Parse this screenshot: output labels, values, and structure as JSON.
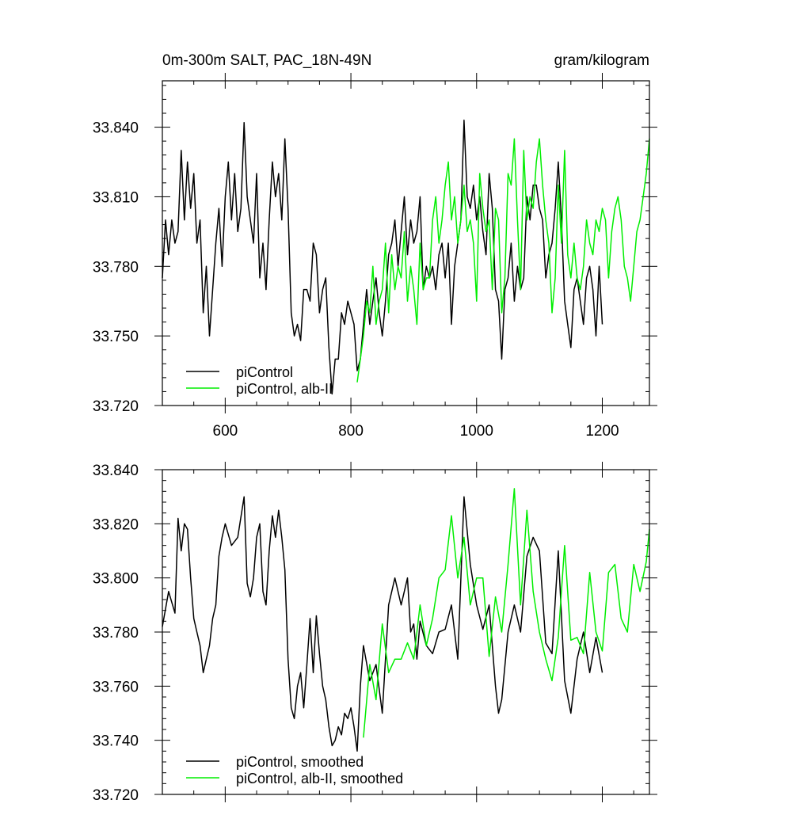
{
  "chart_data": [
    {
      "type": "line",
      "title": "0m-300m SALT, PAC_18N-49N",
      "units": "gram/kilogram",
      "xlabel": "",
      "ylabel": "",
      "xlim": [
        500,
        1275
      ],
      "ylim": [
        33.72,
        33.86
      ],
      "xticks": [
        600,
        800,
        1000,
        1200
      ],
      "xtick_labels": [
        "600",
        "800",
        "1000",
        "1200"
      ],
      "yticks": [
        33.72,
        33.75,
        33.78,
        33.81,
        33.84
      ],
      "ytick_labels": [
        "33.720",
        "33.750",
        "33.780",
        "33.810",
        "33.840"
      ],
      "legend": {
        "placement": "bottom-left"
      },
      "series": [
        {
          "name": "piControl",
          "color": "#000000",
          "x": [
            500,
            505,
            510,
            515,
            520,
            525,
            530,
            535,
            540,
            545,
            550,
            555,
            560,
            565,
            570,
            575,
            580,
            585,
            590,
            595,
            600,
            605,
            610,
            615,
            620,
            625,
            630,
            635,
            640,
            645,
            650,
            655,
            660,
            665,
            670,
            675,
            680,
            685,
            690,
            695,
            700,
            705,
            710,
            715,
            720,
            725,
            730,
            735,
            740,
            745,
            750,
            755,
            760,
            765,
            770,
            775,
            780,
            785,
            790,
            795,
            800,
            805,
            810,
            815,
            820,
            825,
            830,
            835,
            840,
            845,
            850,
            855,
            860,
            865,
            870,
            875,
            880,
            885,
            890,
            895,
            900,
            905,
            910,
            915,
            920,
            925,
            930,
            935,
            940,
            945,
            950,
            955,
            960,
            965,
            970,
            975,
            980,
            985,
            990,
            995,
            1000,
            1005,
            1010,
            1015,
            1020,
            1025,
            1030,
            1035,
            1040,
            1045,
            1050,
            1055,
            1060,
            1065,
            1070,
            1075,
            1080,
            1085,
            1090,
            1095,
            1100,
            1105,
            1110,
            1115,
            1120,
            1125,
            1130,
            1135,
            1140,
            1145,
            1150,
            1155,
            1160,
            1165,
            1170,
            1175,
            1180,
            1185,
            1190,
            1195,
            1200
          ],
          "values": [
            33.775,
            33.8,
            33.785,
            33.8,
            33.79,
            33.795,
            33.83,
            33.8,
            33.825,
            33.805,
            33.82,
            33.79,
            33.8,
            33.76,
            33.78,
            33.75,
            33.77,
            33.79,
            33.805,
            33.78,
            33.81,
            33.825,
            33.8,
            33.82,
            33.795,
            33.805,
            33.842,
            33.81,
            33.8,
            33.79,
            33.82,
            33.775,
            33.79,
            33.77,
            33.8,
            33.825,
            33.81,
            33.82,
            33.8,
            33.835,
            33.805,
            33.76,
            33.75,
            33.755,
            33.748,
            33.77,
            33.77,
            33.765,
            33.79,
            33.785,
            33.76,
            33.77,
            33.775,
            33.745,
            33.725,
            33.74,
            33.74,
            33.76,
            33.755,
            33.765,
            33.76,
            33.755,
            33.735,
            33.74,
            33.755,
            33.77,
            33.755,
            33.765,
            33.775,
            33.76,
            33.75,
            33.765,
            33.785,
            33.79,
            33.8,
            33.78,
            33.795,
            33.81,
            33.785,
            33.8,
            33.79,
            33.795,
            33.81,
            33.77,
            33.78,
            33.775,
            33.78,
            33.77,
            33.785,
            33.79,
            33.775,
            33.79,
            33.755,
            33.78,
            33.79,
            33.8,
            33.843,
            33.81,
            33.805,
            33.815,
            33.8,
            33.81,
            33.795,
            33.785,
            33.82,
            33.805,
            33.77,
            33.765,
            33.74,
            33.77,
            33.775,
            33.79,
            33.765,
            33.78,
            33.77,
            33.775,
            33.81,
            33.8,
            33.815,
            33.815,
            33.805,
            33.8,
            33.775,
            33.785,
            33.79,
            33.805,
            33.825,
            33.8,
            33.765,
            33.755,
            33.745,
            33.77,
            33.775,
            33.765,
            33.755,
            33.775,
            33.78,
            33.77,
            33.75,
            33.78,
            33.755
          ]
        },
        {
          "name": "piControl, alb-II",
          "color": "#00ee00",
          "x": [
            810,
            815,
            820,
            825,
            830,
            835,
            840,
            845,
            850,
            855,
            860,
            865,
            870,
            875,
            880,
            885,
            890,
            895,
            900,
            905,
            910,
            915,
            920,
            925,
            930,
            935,
            940,
            945,
            950,
            955,
            960,
            965,
            970,
            975,
            980,
            985,
            990,
            995,
            1000,
            1005,
            1010,
            1015,
            1020,
            1025,
            1030,
            1035,
            1040,
            1045,
            1050,
            1055,
            1060,
            1065,
            1070,
            1075,
            1080,
            1085,
            1090,
            1095,
            1100,
            1105,
            1110,
            1115,
            1120,
            1125,
            1130,
            1135,
            1140,
            1145,
            1150,
            1155,
            1160,
            1165,
            1170,
            1175,
            1180,
            1185,
            1190,
            1195,
            1200,
            1205,
            1210,
            1215,
            1220,
            1225,
            1230,
            1235,
            1240,
            1245,
            1250,
            1255,
            1260,
            1265,
            1270,
            1275
          ],
          "values": [
            33.73,
            33.74,
            33.75,
            33.765,
            33.76,
            33.78,
            33.755,
            33.765,
            33.77,
            33.79,
            33.76,
            33.785,
            33.77,
            33.78,
            33.775,
            33.795,
            33.765,
            33.78,
            33.77,
            33.755,
            33.79,
            33.77,
            33.775,
            33.775,
            33.8,
            33.81,
            33.79,
            33.8,
            33.815,
            33.825,
            33.8,
            33.81,
            33.79,
            33.8,
            33.815,
            33.795,
            33.8,
            33.79,
            33.765,
            33.82,
            33.805,
            33.795,
            33.8,
            33.77,
            33.805,
            33.8,
            33.76,
            33.775,
            33.82,
            33.815,
            33.835,
            33.8,
            33.77,
            33.83,
            33.8,
            33.81,
            33.805,
            33.825,
            33.835,
            33.815,
            33.8,
            33.79,
            33.76,
            33.775,
            33.815,
            33.79,
            33.83,
            33.785,
            33.775,
            33.79,
            33.775,
            33.77,
            33.78,
            33.8,
            33.79,
            33.785,
            33.8,
            33.795,
            33.805,
            33.8,
            33.775,
            33.795,
            33.805,
            33.81,
            33.8,
            33.78,
            33.775,
            33.765,
            33.78,
            33.795,
            33.8,
            33.81,
            33.82,
            33.835
          ]
        }
      ]
    },
    {
      "type": "line",
      "title": "",
      "xlabel": "",
      "ylabel": "",
      "xlim": [
        500,
        1275
      ],
      "ylim": [
        33.72,
        33.84
      ],
      "xticks": [
        600,
        800,
        1000,
        1200
      ],
      "yticks": [
        33.72,
        33.74,
        33.76,
        33.78,
        33.8,
        33.82,
        33.84
      ],
      "ytick_labels": [
        "33.720",
        "33.740",
        "33.760",
        "33.780",
        "33.800",
        "33.820",
        "33.840"
      ],
      "legend": {
        "placement": "bottom-left"
      },
      "series": [
        {
          "name": "piControl, smoothed",
          "color": "#000000",
          "x": [
            500,
            510,
            520,
            525,
            530,
            535,
            540,
            545,
            550,
            555,
            560,
            565,
            570,
            575,
            580,
            585,
            590,
            595,
            600,
            610,
            620,
            630,
            635,
            640,
            645,
            650,
            655,
            660,
            665,
            670,
            675,
            680,
            685,
            690,
            695,
            700,
            705,
            710,
            715,
            720,
            725,
            730,
            735,
            740,
            745,
            750,
            755,
            760,
            765,
            770,
            775,
            780,
            785,
            790,
            795,
            800,
            805,
            810,
            815,
            820,
            830,
            840,
            850,
            860,
            870,
            880,
            890,
            895,
            900,
            905,
            910,
            920,
            930,
            940,
            950,
            960,
            970,
            980,
            990,
            1000,
            1010,
            1020,
            1030,
            1035,
            1040,
            1050,
            1060,
            1070,
            1080,
            1090,
            1100,
            1110,
            1120,
            1130,
            1140,
            1150,
            1160,
            1170,
            1180,
            1190,
            1200
          ],
          "values": [
            33.782,
            33.795,
            33.787,
            33.822,
            33.81,
            33.82,
            33.818,
            33.8,
            33.785,
            33.78,
            33.775,
            33.765,
            33.77,
            33.775,
            33.785,
            33.79,
            33.808,
            33.815,
            33.82,
            33.812,
            33.815,
            33.83,
            33.798,
            33.793,
            33.8,
            33.815,
            33.82,
            33.795,
            33.79,
            33.81,
            33.823,
            33.815,
            33.825,
            33.815,
            33.803,
            33.77,
            33.752,
            33.748,
            33.76,
            33.765,
            33.752,
            33.768,
            33.785,
            33.765,
            33.786,
            33.772,
            33.76,
            33.755,
            33.745,
            33.738,
            33.74,
            33.745,
            33.742,
            33.75,
            33.748,
            33.752,
            33.745,
            33.736,
            33.76,
            33.775,
            33.762,
            33.768,
            33.75,
            33.79,
            33.8,
            33.79,
            33.8,
            33.78,
            33.783,
            33.77,
            33.784,
            33.775,
            33.772,
            33.78,
            33.781,
            33.79,
            33.77,
            33.83,
            33.805,
            33.79,
            33.781,
            33.79,
            33.76,
            33.75,
            33.755,
            33.78,
            33.79,
            33.78,
            33.808,
            33.815,
            33.81,
            33.776,
            33.772,
            33.81,
            33.762,
            33.75,
            33.77,
            33.78,
            33.765,
            33.778,
            33.765
          ]
        },
        {
          "name": "piControl, alb-II, smoothed",
          "color": "#00ee00",
          "x": [
            820,
            830,
            840,
            850,
            860,
            870,
            880,
            890,
            900,
            910,
            920,
            930,
            940,
            950,
            960,
            970,
            980,
            990,
            1000,
            1010,
            1020,
            1030,
            1040,
            1050,
            1060,
            1070,
            1080,
            1090,
            1100,
            1110,
            1120,
            1130,
            1140,
            1150,
            1160,
            1170,
            1180,
            1190,
            1200,
            1210,
            1220,
            1230,
            1240,
            1250,
            1260,
            1270,
            1275
          ],
          "values": [
            33.741,
            33.768,
            33.755,
            33.783,
            33.765,
            33.77,
            33.77,
            33.776,
            33.77,
            33.79,
            33.775,
            33.785,
            33.8,
            33.803,
            33.823,
            33.8,
            33.815,
            33.79,
            33.8,
            33.8,
            33.771,
            33.793,
            33.78,
            33.805,
            33.833,
            33.79,
            33.825,
            33.795,
            33.78,
            33.77,
            33.762,
            33.778,
            33.812,
            33.777,
            33.778,
            33.772,
            33.802,
            33.78,
            33.773,
            33.802,
            33.805,
            33.785,
            33.78,
            33.805,
            33.795,
            33.806,
            33.818
          ]
        }
      ]
    }
  ]
}
